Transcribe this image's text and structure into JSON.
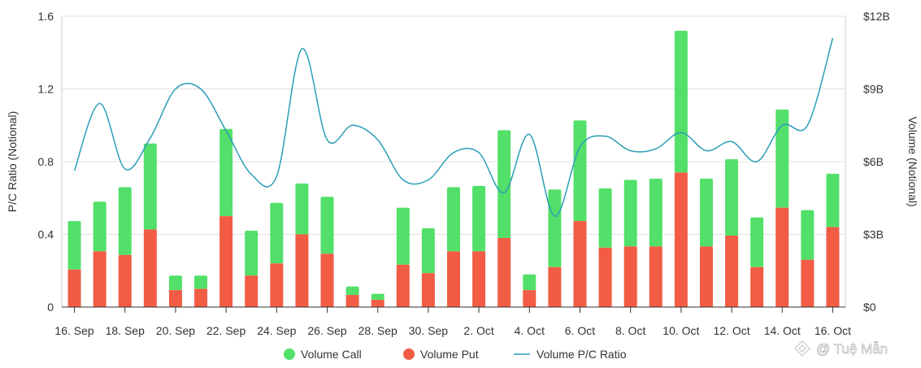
{
  "chart_data": {
    "type": "bar",
    "stacked": true,
    "title": "",
    "categories": [
      "16. Sep",
      "17. Sep",
      "18. Sep",
      "19. Sep",
      "20. Sep",
      "21. Sep",
      "22. Sep",
      "23. Sep",
      "24. Sep",
      "25. Sep",
      "26. Sep",
      "27. Sep",
      "28. Sep",
      "29. Sep",
      "30. Sep",
      "1. Oct",
      "2. Oct",
      "3. Oct",
      "4. Oct",
      "5. Oct",
      "6. Oct",
      "7. Oct",
      "8. Oct",
      "9. Oct",
      "10. Oct",
      "11. Oct",
      "12. Oct",
      "13. Oct",
      "14. Oct",
      "15. Oct",
      "16. Oct"
    ],
    "x_tick_labels": [
      "16. Sep",
      "18. Sep",
      "20. Sep",
      "22. Sep",
      "24. Sep",
      "26. Sep",
      "28. Sep",
      "30. Sep",
      "2. Oct",
      "4. Oct",
      "6. Oct",
      "8. Oct",
      "10. Oct",
      "12. Oct",
      "14. Oct",
      "16. Oct"
    ],
    "series": [
      {
        "name": "Volume Put",
        "axis": "right",
        "color": "#f25c45",
        "values": [
          1.55,
          2.3,
          2.15,
          3.2,
          0.7,
          0.75,
          3.75,
          1.3,
          1.8,
          3.0,
          2.2,
          0.5,
          0.3,
          1.75,
          1.4,
          2.3,
          2.3,
          2.85,
          0.7,
          1.65,
          3.55,
          2.45,
          2.5,
          2.5,
          5.55,
          2.5,
          2.95,
          1.65,
          4.1,
          1.95,
          3.3
        ]
      },
      {
        "name": "Volume Call",
        "axis": "right",
        "color": "#52e06a",
        "values": [
          2.0,
          2.05,
          2.8,
          3.55,
          0.6,
          0.55,
          3.6,
          1.85,
          2.5,
          2.1,
          2.35,
          0.35,
          0.25,
          2.35,
          1.85,
          2.65,
          2.7,
          4.45,
          0.65,
          3.2,
          4.15,
          2.45,
          2.75,
          2.8,
          5.85,
          2.8,
          3.15,
          2.05,
          4.05,
          2.05,
          2.2
        ]
      },
      {
        "name": "Volume P/C Ratio",
        "axis": "left",
        "type": "line",
        "color": "#2a9db8",
        "values": [
          0.75,
          1.12,
          0.76,
          0.93,
          1.2,
          1.2,
          0.97,
          0.73,
          0.72,
          1.42,
          0.92,
          1.0,
          0.92,
          0.7,
          0.7,
          0.85,
          0.85,
          0.63,
          0.95,
          0.5,
          0.88,
          0.94,
          0.86,
          0.87,
          0.96,
          0.86,
          0.91,
          0.8,
          1.0,
          1.0,
          1.48
        ]
      }
    ],
    "legend": [
      "Volume Call",
      "Volume Put",
      "Volume P/C Ratio"
    ],
    "legend_position": "bottom",
    "y_left": {
      "label": "P/C Ratio (Notional)",
      "range": [
        0,
        1.6
      ],
      "ticks": [
        "0",
        "0.4",
        "0.8",
        "1.2",
        "1.6"
      ]
    },
    "y_right": {
      "label": "Volume (Notional)",
      "range": [
        0,
        12
      ],
      "unit": "billion USD",
      "ticks": [
        "$0",
        "$3B",
        "$6B",
        "$9B",
        "$12B"
      ]
    },
    "grid": true
  },
  "watermark": "@ Tuệ Mẫn"
}
